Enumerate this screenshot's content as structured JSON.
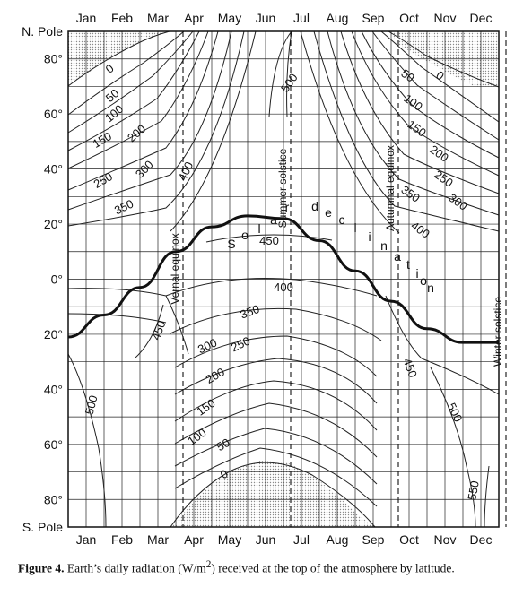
{
  "chart_data": {
    "type": "contour",
    "units": "W/m2",
    "x_months": [
      "Jan",
      "Feb",
      "Mar",
      "Apr",
      "May",
      "Jun",
      "Jul",
      "Aug",
      "Sep",
      "Oct",
      "Nov",
      "Dec"
    ],
    "y_labels": [
      "N. Pole",
      "80°",
      "60°",
      "40°",
      "20°",
      "0°",
      "20°",
      "40°",
      "60°",
      "80°",
      "S. Pole"
    ],
    "contour_levels": [
      0,
      50,
      100,
      150,
      200,
      250,
      300,
      350,
      400,
      450,
      500,
      550
    ],
    "solar_declination_label": "Solar declination",
    "solar_declination_deg": {
      "months": [
        "Jan",
        "Feb",
        "Mar",
        "Apr",
        "May",
        "Jun",
        "Jul",
        "Aug",
        "Sep",
        "Oct",
        "Nov",
        "Dec",
        "Dec-end"
      ],
      "values": [
        -21,
        -13,
        -3,
        10,
        19,
        23,
        22,
        14,
        3,
        -8,
        -18,
        -23,
        -23
      ]
    },
    "event_lines": [
      {
        "label": "Vernal equinox",
        "month_pos": 2.7
      },
      {
        "label": "Summer solstice",
        "month_pos": 5.7
      },
      {
        "label": "Autumnal equinox",
        "month_pos": 8.7
      },
      {
        "label": "Winter solstice",
        "month_pos": 11.7
      }
    ],
    "shaded_regions": [
      "polar night north (Nov–Feb, 70°N–pole)",
      "polar night south (Apr–Sep, 70°S–pole)"
    ]
  },
  "caption": {
    "label": "Figure 4.",
    "text": "  Earth’s daily radiation (W/m",
    "sup": "2",
    "text_end": ") received at the top of the atmosphere by latitude."
  }
}
